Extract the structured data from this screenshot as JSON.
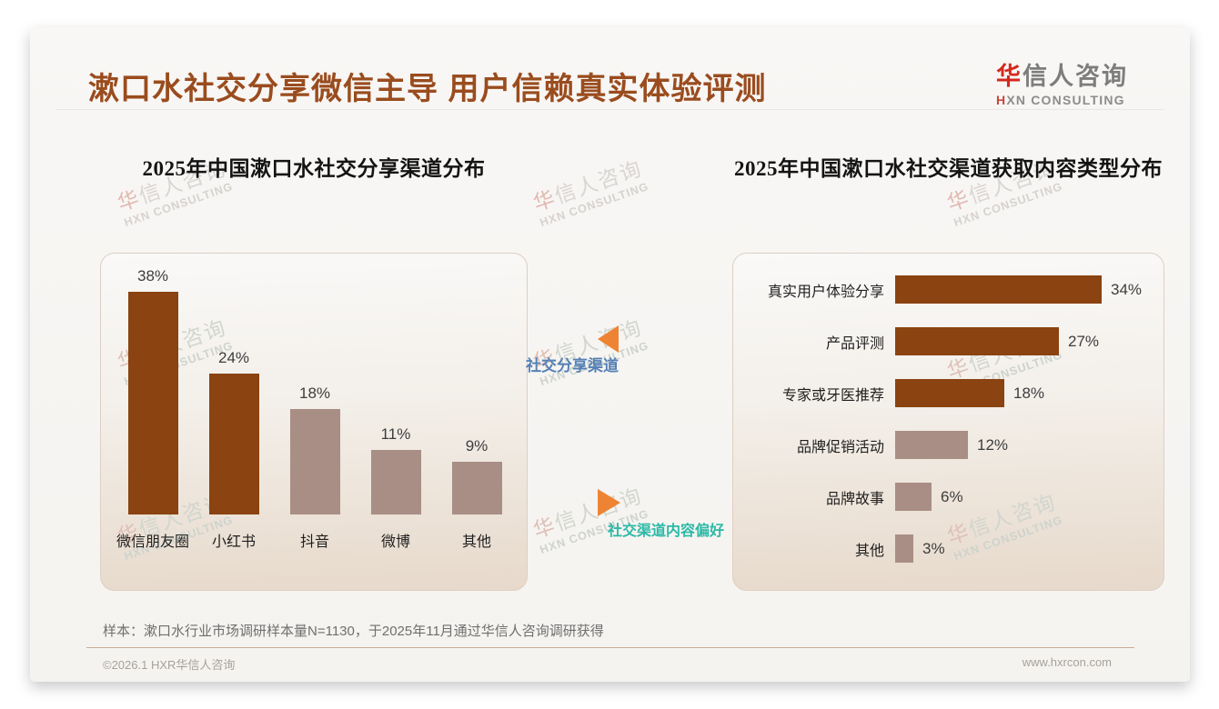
{
  "page": {
    "header": {
      "title": "漱口水社交分享微信主导 用户信赖真实体验评测"
    },
    "logo": {
      "zh_first": "华",
      "zh_rest": "信人咨询",
      "en_first": "H",
      "en_rest": "XN CONSULTING"
    },
    "watermark": {
      "zh": "华信人咨询",
      "en": "HXN CONSULTING"
    },
    "annotations": {
      "left": {
        "label": "社交分享渠道",
        "color": "#5580b5"
      },
      "right": {
        "label": "社交渠道内容偏好",
        "color": "#2cb9a6"
      }
    },
    "note": "样本：漱口水行业市场调研样本量N=1130，于2025年11月通过华信人咨询调研获得",
    "footer": {
      "left": "©2026.1 HXR华信人咨询",
      "right": "www.hxrcon.com"
    }
  },
  "colors": {
    "title_brown": "#9a4c1e",
    "bar_dark": "#8a4311",
    "bar_light": "#a98e85",
    "triangle_orange": "#ee8433",
    "logo_red": "#d5281e"
  },
  "chart_data": [
    {
      "type": "bar",
      "title": "2025年中国漱口水社交分享渠道分布",
      "categories": [
        "微信朋友圈",
        "小红书",
        "抖音",
        "微博",
        "其他"
      ],
      "values": [
        38,
        24,
        18,
        11,
        9
      ],
      "unit": "%",
      "bar_colors": [
        "#8a4311",
        "#8a4311",
        "#a98e85",
        "#a98e85",
        "#a98e85"
      ],
      "ylim": [
        0,
        40
      ],
      "grid": false,
      "legend": "none"
    },
    {
      "type": "bar-horizontal",
      "title": "2025年中国漱口水社交渠道获取内容类型分布",
      "categories": [
        "真实用户体验分享",
        "产品评测",
        "专家或牙医推荐",
        "品牌促销活动",
        "品牌故事",
        "其他"
      ],
      "values": [
        34,
        27,
        18,
        12,
        6,
        3
      ],
      "unit": "%",
      "bar_colors": [
        "#8a4311",
        "#8a4311",
        "#8a4311",
        "#a98e85",
        "#a98e85",
        "#a98e85"
      ],
      "xlim": [
        0,
        36
      ],
      "grid": false,
      "legend": "none"
    }
  ]
}
